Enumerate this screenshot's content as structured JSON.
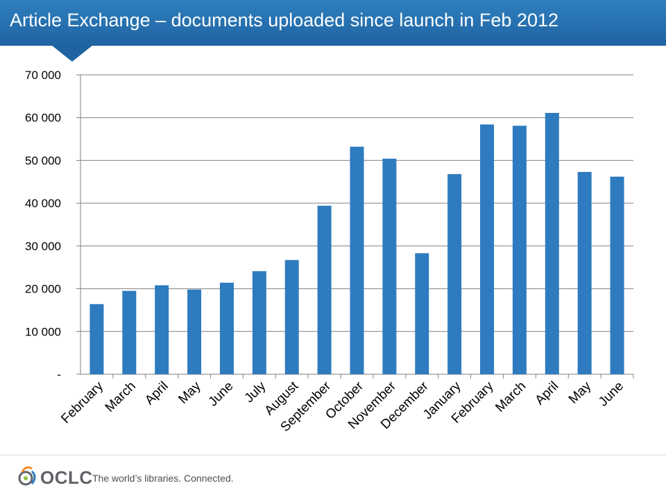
{
  "slide": {
    "title": "Article Exchange – documents uploaded since launch in Feb 2012"
  },
  "footer": {
    "logo_text": "OCLC",
    "tagline": "The world’s libraries. Connected."
  },
  "colors": {
    "title_bar": "#1f63a1",
    "bar": "#2e7bbf",
    "grid": "#7f7f7f"
  },
  "chart_data": {
    "type": "bar",
    "title": "",
    "xlabel": "",
    "ylabel": "",
    "categories": [
      "February",
      "March",
      "April",
      "May",
      "June",
      "July",
      "August",
      "September",
      "October",
      "November",
      "December",
      "January",
      "February",
      "March",
      "April",
      "May",
      "June"
    ],
    "values": [
      16400,
      19500,
      20800,
      19800,
      21400,
      24100,
      26700,
      39400,
      53200,
      50400,
      28300,
      46800,
      58400,
      58100,
      61100,
      47300,
      46200
    ],
    "ylim": [
      0,
      70000
    ],
    "yticks": [
      0,
      10000,
      20000,
      30000,
      40000,
      50000,
      60000,
      70000
    ],
    "ytick_labels": [
      "-",
      "10 000",
      "20 000",
      "30 000",
      "40 000",
      "50 000",
      "60 000",
      "70 000"
    ],
    "grid": true,
    "legend": "none"
  }
}
